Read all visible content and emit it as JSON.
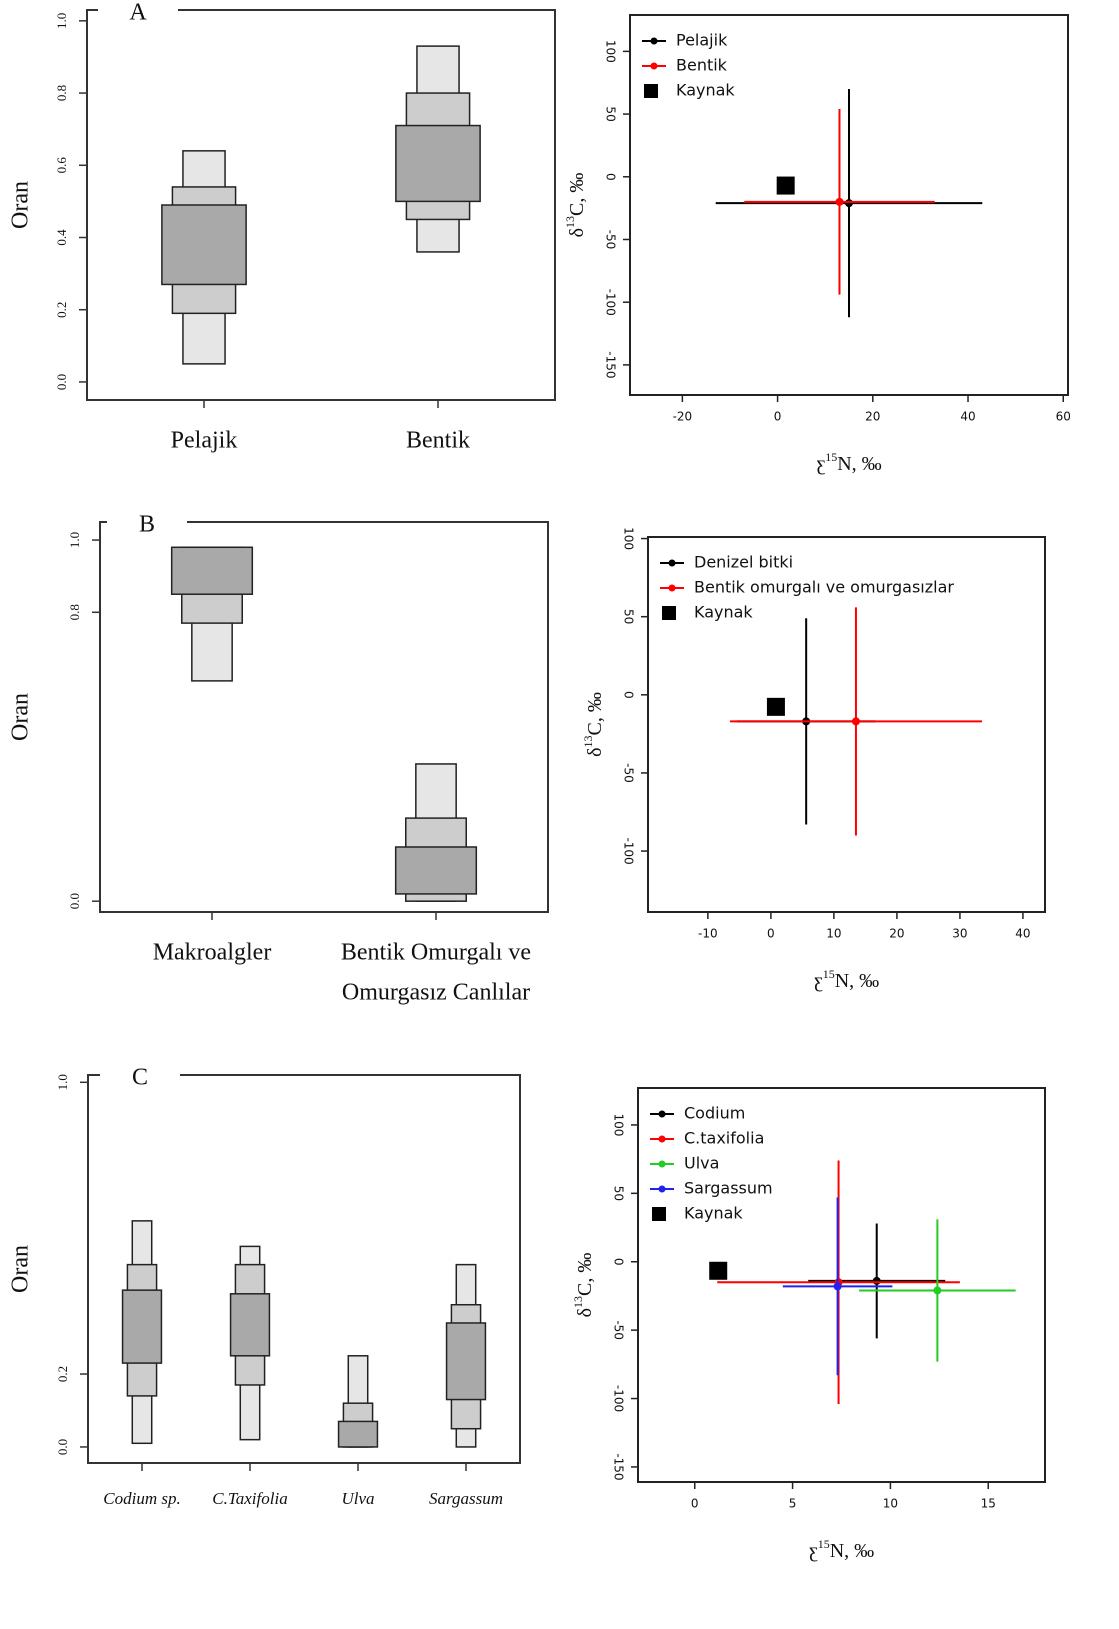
{
  "chart_data": [
    {
      "type": "interval",
      "panel": "A",
      "y_label": "Oran",
      "categories": [
        "Pelajik",
        "Bentik"
      ],
      "ranges": [
        [
          [
            0.05,
            0.64
          ],
          [
            0.19,
            0.54
          ],
          [
            0.27,
            0.49
          ]
        ],
        [
          [
            0.36,
            0.93
          ],
          [
            0.45,
            0.8
          ],
          [
            0.5,
            0.71
          ]
        ]
      ],
      "colors": [
        "#e6e6e6",
        "#cdcdcd",
        "#a9a9a9"
      ],
      "ylim": [
        -0.05,
        1.03
      ],
      "yticks": [
        {
          "value": 0,
          "label": "0.0"
        },
        0.2,
        0.4,
        0.6,
        0.8,
        {
          "value": 1,
          "label": "1.0"
        }
      ]
    },
    {
      "type": "errorbar",
      "y_label": [
        "δ",
        "13",
        "C, ‰"
      ],
      "x_label": [
        "ƹ",
        "15",
        "N, ‰"
      ],
      "xlim": [
        -31,
        61
      ],
      "xticks": [
        -20,
        0,
        20,
        40,
        60
      ],
      "ylim": [
        -174,
        129
      ],
      "yticks": [
        -150,
        -100,
        -50,
        0,
        50,
        100
      ],
      "series": [
        {
          "name": "Pelajik",
          "color": "#000000",
          "x": [
            15
          ],
          "y": [
            -21
          ],
          "xerr": [
            28
          ],
          "yerr": [
            91
          ]
        },
        {
          "name": "Bentik",
          "color": "#ff0000",
          "x": [
            13
          ],
          "y": [
            -20
          ],
          "xerr": [
            20
          ],
          "yerr": [
            74
          ]
        },
        {
          "name": "Kaynak",
          "color": "#000000",
          "marker": "square",
          "x": [
            1.7
          ],
          "y": [
            -7
          ]
        }
      ]
    },
    {
      "type": "interval",
      "panel": "B",
      "y_label": "Oran",
      "categories": [
        "Makroalgler",
        [
          "Bentik Omurgalı ve",
          "Omurgasız Canlılar"
        ]
      ],
      "ranges": [
        [
          [
            0.61,
            0.98
          ],
          [
            0.77,
            0.98
          ],
          [
            0.85,
            0.98
          ]
        ],
        [
          [
            0.0,
            0.38
          ],
          [
            0.0,
            0.23
          ],
          [
            0.02,
            0.15
          ]
        ]
      ],
      "colors": [
        "#e6e6e6",
        "#cdcdcd",
        "#a9a9a9"
      ],
      "ylim": [
        -0.03,
        1.05
      ],
      "yticks": [
        {
          "value": 0,
          "label": "0.0"
        },
        0.8,
        {
          "value": 1,
          "label": "1.0"
        }
      ]
    },
    {
      "type": "errorbar",
      "y_label": [
        "δ",
        "13",
        "C, ‰"
      ],
      "x_label": [
        "ƹ",
        "15",
        "N, ‰"
      ],
      "xlim": [
        -19.5,
        43.5
      ],
      "xticks": [
        -10,
        0,
        10,
        20,
        30,
        40
      ],
      "ylim": [
        -139,
        101
      ],
      "yticks": [
        -100,
        -50,
        0,
        50,
        100
      ],
      "series": [
        {
          "name": "Denizel bitki",
          "color": "#000000",
          "x": [
            5.6
          ],
          "y": [
            -17
          ],
          "xerr": [
            11
          ],
          "yerr": [
            66
          ]
        },
        {
          "name": "Bentik omurgalı ve omurgasızlar",
          "color": "#ff0000",
          "x": [
            13.5
          ],
          "y": [
            -17
          ],
          "xerr": [
            20
          ],
          "yerr": [
            73
          ]
        },
        {
          "name": "Kaynak",
          "color": "#000000",
          "marker": "square",
          "x": [
            0.8
          ],
          "y": [
            -7.7
          ]
        }
      ]
    },
    {
      "type": "interval",
      "panel": "C",
      "y_label": "Oran",
      "italic_categories": true,
      "categories": [
        "Codium sp.",
        "C.Taxifolia",
        "Ulva",
        "Sargassum"
      ],
      "ranges": [
        [
          [
            0.01,
            0.62
          ],
          [
            0.14,
            0.5
          ],
          [
            0.23,
            0.43
          ]
        ],
        [
          [
            0.02,
            0.55
          ],
          [
            0.17,
            0.5
          ],
          [
            0.25,
            0.42
          ]
        ],
        [
          [
            0,
            0.25
          ],
          [
            0,
            0.12
          ],
          [
            0,
            0.07
          ]
        ],
        [
          [
            0,
            0.5
          ],
          [
            0.05,
            0.39
          ],
          [
            0.13,
            0.34
          ]
        ]
      ],
      "colors": [
        "#e6e6e6",
        "#cdcdcd",
        "#a9a9a9"
      ],
      "ylim": [
        -0.044,
        1.02
      ],
      "yticks": [
        {
          "value": 0,
          "label": "0.0"
        },
        0.2,
        {
          "value": 1,
          "label": "1.0"
        }
      ]
    },
    {
      "type": "errorbar",
      "y_label": [
        "δ",
        "13",
        "C, ‰"
      ],
      "x_label": [
        "ƹ",
        "15",
        "N, ‰"
      ],
      "xlim": [
        -2.9,
        17.9
      ],
      "xticks": [
        0,
        5,
        10,
        15
      ],
      "ylim": [
        -161,
        127
      ],
      "yticks": [
        -150,
        -100,
        -50,
        0,
        50,
        100
      ],
      "series": [
        {
          "name": "Codium",
          "color": "#000000",
          "x": [
            9.3
          ],
          "y": [
            -14
          ],
          "xerr": [
            3.5
          ],
          "yerr": [
            42
          ]
        },
        {
          "name": "C.taxifolia",
          "color": "#ff0000",
          "x": [
            7.35
          ],
          "y": [
            -15
          ],
          "xerr": [
            6.2
          ],
          "yerr": [
            89
          ]
        },
        {
          "name": "Ulva",
          "color": "#22cc22",
          "x": [
            12.4
          ],
          "y": [
            -21
          ],
          "xerr": [
            4
          ],
          "yerr": [
            52
          ]
        },
        {
          "name": "Sargassum",
          "color": "#2222ee",
          "x": [
            7.3
          ],
          "y": [
            -18
          ],
          "xerr": [
            2.8
          ],
          "yerr": [
            65
          ]
        },
        {
          "name": "Kaynak",
          "color": "#000000",
          "marker": "square",
          "x": [
            1.2
          ],
          "y": [
            -6.6
          ]
        }
      ]
    }
  ]
}
